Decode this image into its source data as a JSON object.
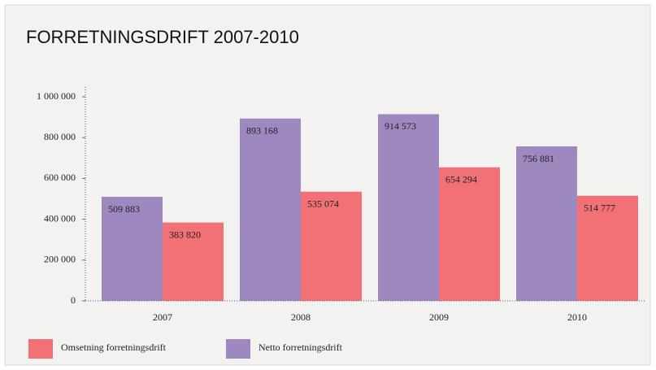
{
  "chart_data": {
    "type": "bar",
    "title": "FORRETNINGSDRIFT 2007-2010",
    "categories": [
      "2007",
      "2008",
      "2009",
      "2010"
    ],
    "series": [
      {
        "name": "Netto forretningsdrift",
        "color": "#9e88c0",
        "values": [
          509883,
          893168,
          914573,
          756881
        ],
        "value_labels": [
          "509 883",
          "893 168",
          "914 573",
          "756 881"
        ]
      },
      {
        "name": "Omsetning forretningsdrift",
        "color": "#f27176",
        "values": [
          383820,
          535074,
          654294,
          514777
        ],
        "value_labels": [
          "383 820",
          "535 074",
          "654 294",
          "514 777"
        ]
      }
    ],
    "ylim": [
      0,
      1000000
    ],
    "yticks": [
      0,
      {
        "value": 200000,
        "label": "200 000"
      },
      {
        "value": 400000,
        "label": "400 000"
      },
      {
        "value": 600000,
        "label": "600 000"
      },
      {
        "value": 800000,
        "label": "800 000"
      },
      {
        "value": 1000000,
        "label": "1 000 000"
      }
    ],
    "grid": false
  }
}
